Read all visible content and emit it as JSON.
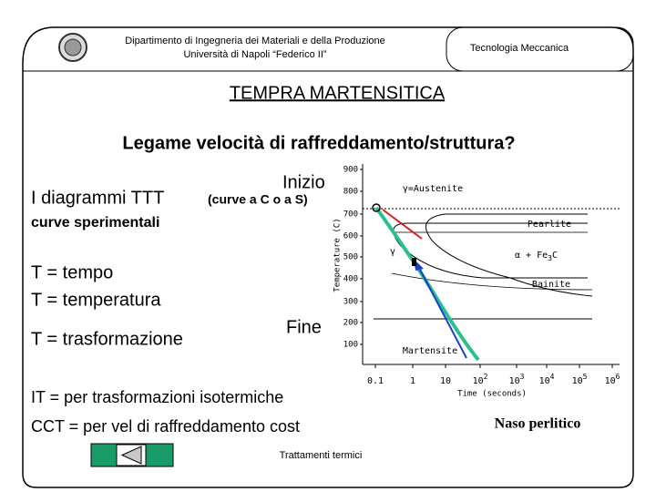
{
  "header": {
    "department": "Dipartimento di Ingegneria dei Materiali e della Produzione",
    "university": "Università di Napoli “Federico II”",
    "course": "Tecnologia  Meccanica"
  },
  "title": "TEMPRA  MARTENSITICA",
  "subtitle": "Legame velocità di raffreddamento/struttura?",
  "body": {
    "ttt": "I diagrammi TTT",
    "curves": "(curve a C o a S)",
    "start": "Inizio",
    "experimental": "curve sperimentali",
    "definitions": [
      "T = tempo",
      "T = temperatura",
      "T = trasformazione"
    ],
    "end": "Fine",
    "it": "IT = per trasformazioni isotermiche",
    "cct": "CCT = per vel di raffreddamento cost",
    "nose": "Naso perlitico"
  },
  "footer": "Trattamenti termici",
  "diagram": {
    "y_label": "Temperature (C)",
    "x_label": "Time (seconds)",
    "y_ticks": [
      "900",
      "800",
      "700",
      "600",
      "500",
      "400",
      "300",
      "200",
      "100"
    ],
    "x_ticks": [
      {
        "base": "0.1"
      },
      {
        "base": "1"
      },
      {
        "base": "10"
      },
      {
        "base": "10",
        "exp": "2"
      },
      {
        "base": "10",
        "exp": "3"
      },
      {
        "base": "10",
        "exp": "4"
      },
      {
        "base": "10",
        "exp": "5"
      },
      {
        "base": "10",
        "exp": "6"
      }
    ],
    "regions": [
      "γ=Austenite",
      "Pearlite",
      "γ",
      "α + Fe",
      "3",
      "C",
      "Bainite",
      "Martensite"
    ]
  }
}
